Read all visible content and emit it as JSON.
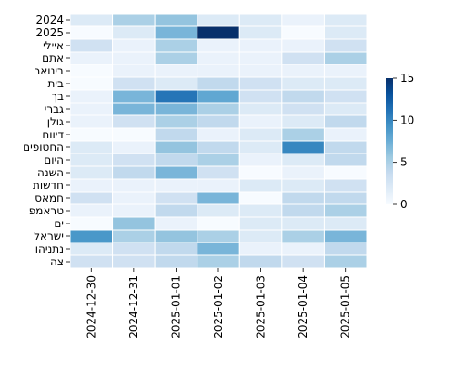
{
  "chart_data": {
    "type": "heatmap",
    "title": "",
    "xlabel": "",
    "ylabel": "",
    "x_categories": [
      "2024-12-30",
      "2024-12-31",
      "2025-01-01",
      "2025-01-02",
      "2025-01-03",
      "2025-01-04",
      "2025-01-05"
    ],
    "y_categories": [
      "2024",
      "2025",
      "איילי",
      "אתם",
      "בינואר",
      "בית",
      "בך",
      "גברי",
      "גולן",
      "דיווח",
      "החטופים",
      "היום",
      "השנה",
      "חדשות",
      "חמאס",
      "טראמפ",
      "ים",
      "ישראל",
      "נתניהו",
      "צה"
    ],
    "values": [
      [
        2,
        5,
        6,
        2,
        2,
        1,
        2
      ],
      [
        0,
        2,
        7,
        15,
        2,
        0,
        2
      ],
      [
        3,
        1,
        5,
        1,
        1,
        1,
        3
      ],
      [
        1,
        1,
        5,
        1,
        1,
        3,
        5
      ],
      [
        0,
        1,
        1,
        1,
        1,
        1,
        1
      ],
      [
        0,
        3,
        2,
        4,
        3,
        2,
        2
      ],
      [
        1,
        7,
        11,
        8,
        3,
        4,
        3
      ],
      [
        1,
        7,
        7,
        5,
        2,
        3,
        2
      ],
      [
        1,
        3,
        5,
        4,
        1,
        2,
        4
      ],
      [
        0,
        0,
        4,
        1,
        2,
        5,
        1
      ],
      [
        2,
        1,
        6,
        4,
        2,
        10,
        4
      ],
      [
        2,
        3,
        4,
        5,
        1,
        2,
        4
      ],
      [
        2,
        4,
        7,
        3,
        0,
        1,
        0
      ],
      [
        1,
        1,
        1,
        1,
        2,
        2,
        3
      ],
      [
        3,
        1,
        3,
        7,
        0,
        4,
        4
      ],
      [
        1,
        1,
        4,
        2,
        2,
        4,
        5
      ],
      [
        0,
        6,
        1,
        0,
        2,
        2,
        2
      ],
      [
        9,
        5,
        6,
        5,
        2,
        5,
        7
      ],
      [
        2,
        3,
        4,
        7,
        1,
        1,
        4
      ],
      [
        3,
        3,
        4,
        5,
        4,
        3,
        5
      ]
    ],
    "colorbar": {
      "min": 0,
      "max": 15,
      "ticks": [
        0,
        5,
        10,
        15
      ]
    },
    "colormap": [
      "#f7fbff",
      "#deebf7",
      "#c6dbef",
      "#9ecae1",
      "#6baed6",
      "#4292c6",
      "#2171b5",
      "#08519c",
      "#08306b"
    ],
    "grid": false,
    "legend": "colorbar-right"
  }
}
